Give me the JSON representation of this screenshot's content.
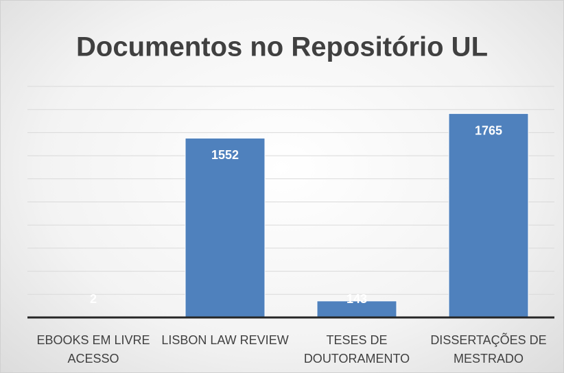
{
  "chart_data": {
    "type": "bar",
    "title": "Documentos no Repositório UL",
    "categories": [
      "EBOOKS EM LIVRE ACESSO",
      "LISBON LAW REVIEW",
      "TESES DE DOUTORAMENTO",
      "DISSERTAÇÕES DE MESTRADO"
    ],
    "values": [
      2,
      1552,
      143,
      1765
    ],
    "color": "#4f81bd",
    "ylim": [
      0,
      2000
    ],
    "yticks": [
      0,
      200,
      400,
      600,
      800,
      1000,
      1200,
      1400,
      1600,
      1800,
      2000
    ],
    "grid": true
  }
}
